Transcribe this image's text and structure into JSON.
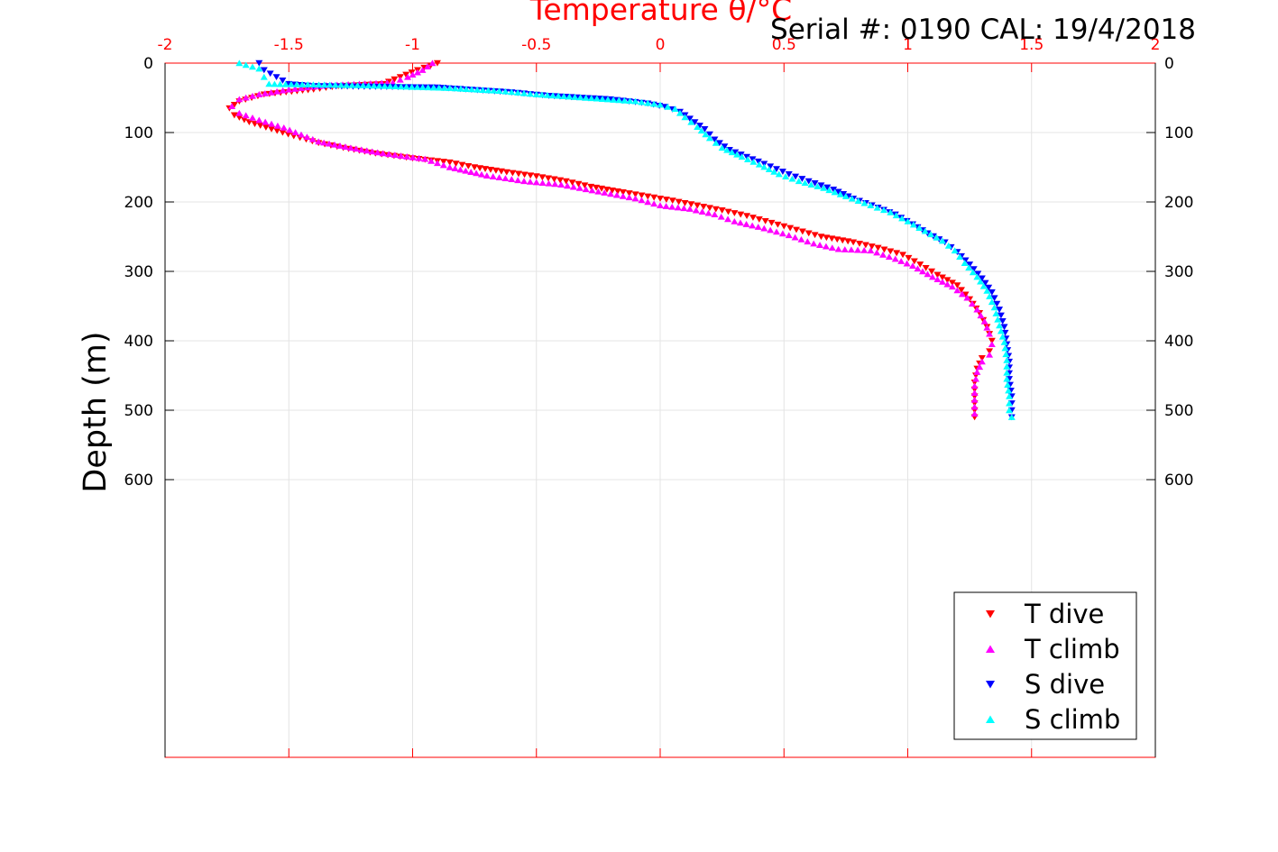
{
  "chart_data": {
    "type": "scatter",
    "title": "Temperature θ/°C",
    "subtitle": "Serial #: 0190  CAL: 19/4/2018",
    "xlabel": "Temperature θ/°C",
    "ylabel": "Depth (m)",
    "xlim": [
      -2,
      2
    ],
    "ylim": [
      0,
      1000
    ],
    "y_reversed": true,
    "x_axis_position": "top",
    "right_axis_ticks_mirrored": true,
    "grid": true,
    "legend_position": "bottom-right",
    "x_ticks": [
      {
        "value": -2,
        "label": "-2"
      },
      {
        "value": -1.5,
        "label": "-1.5"
      },
      {
        "value": -1,
        "label": "-1"
      },
      {
        "value": -0.5,
        "label": "-0.5"
      },
      {
        "value": 0,
        "label": "0"
      },
      {
        "value": 0.5,
        "label": "0.5"
      },
      {
        "value": 1,
        "label": "1"
      },
      {
        "value": 1.5,
        "label": "1.5"
      },
      {
        "value": 2,
        "label": "2"
      }
    ],
    "y_ticks": [
      {
        "value": 0,
        "label": "0"
      },
      {
        "value": 100,
        "label": "100"
      },
      {
        "value": 200,
        "label": "200"
      },
      {
        "value": 300,
        "label": "300"
      },
      {
        "value": 400,
        "label": "400"
      },
      {
        "value": 500,
        "label": "500"
      },
      {
        "value": 600,
        "label": "600"
      }
    ],
    "series": [
      {
        "name": "T dive",
        "color": "#ff0000",
        "marker": "triangle-down",
        "points": [
          [
            -0.9,
            0
          ],
          [
            -0.98,
            10
          ],
          [
            -1.05,
            20
          ],
          [
            -1.12,
            30
          ],
          [
            -1.3,
            33
          ],
          [
            -1.4,
            38
          ],
          [
            -1.6,
            45
          ],
          [
            -1.7,
            55
          ],
          [
            -1.74,
            65
          ],
          [
            -1.72,
            75
          ],
          [
            -1.66,
            85
          ],
          [
            -1.57,
            95
          ],
          [
            -1.48,
            105
          ],
          [
            -1.38,
            115
          ],
          [
            -1.28,
            122
          ],
          [
            -1.15,
            130
          ],
          [
            -1.0,
            137
          ],
          [
            -0.85,
            143
          ],
          [
            -0.75,
            150
          ],
          [
            -0.62,
            157
          ],
          [
            -0.5,
            163
          ],
          [
            -0.38,
            170
          ],
          [
            -0.28,
            178
          ],
          [
            -0.15,
            186
          ],
          [
            -0.05,
            192
          ],
          [
            0.05,
            198
          ],
          [
            0.15,
            205
          ],
          [
            0.25,
            212
          ],
          [
            0.35,
            220
          ],
          [
            0.45,
            230
          ],
          [
            0.55,
            240
          ],
          [
            0.65,
            250
          ],
          [
            0.78,
            258
          ],
          [
            0.88,
            266
          ],
          [
            0.98,
            276
          ],
          [
            1.05,
            290
          ],
          [
            1.12,
            305
          ],
          [
            1.2,
            320
          ],
          [
            1.25,
            340
          ],
          [
            1.29,
            360
          ],
          [
            1.32,
            380
          ],
          [
            1.34,
            400
          ],
          [
            1.33,
            415
          ],
          [
            1.3,
            425
          ],
          [
            1.28,
            440
          ],
          [
            1.27,
            460
          ],
          [
            1.27,
            480
          ],
          [
            1.27,
            500
          ],
          [
            1.27,
            510
          ]
        ]
      },
      {
        "name": "T climb",
        "color": "#ff00ff",
        "marker": "triangle-up",
        "points": [
          [
            -0.92,
            0
          ],
          [
            -0.96,
            10
          ],
          [
            -1.02,
            20
          ],
          [
            -1.08,
            28
          ],
          [
            -1.35,
            32
          ],
          [
            -1.5,
            38
          ],
          [
            -1.62,
            45
          ],
          [
            -1.7,
            52
          ],
          [
            -1.73,
            62
          ],
          [
            -1.7,
            72
          ],
          [
            -1.62,
            82
          ],
          [
            -1.52,
            93
          ],
          [
            -1.45,
            103
          ],
          [
            -1.38,
            113
          ],
          [
            -1.25,
            122
          ],
          [
            -1.12,
            130
          ],
          [
            -0.95,
            138
          ],
          [
            -0.85,
            150
          ],
          [
            -0.7,
            162
          ],
          [
            -0.55,
            170
          ],
          [
            -0.4,
            175
          ],
          [
            -0.25,
            185
          ],
          [
            -0.1,
            195
          ],
          [
            0.0,
            205
          ],
          [
            0.12,
            210
          ],
          [
            0.22,
            218
          ],
          [
            0.3,
            228
          ],
          [
            0.42,
            238
          ],
          [
            0.52,
            248
          ],
          [
            0.62,
            260
          ],
          [
            0.72,
            268
          ],
          [
            0.85,
            270
          ],
          [
            0.95,
            282
          ],
          [
            1.02,
            292
          ],
          [
            1.1,
            308
          ],
          [
            1.18,
            322
          ],
          [
            1.24,
            338
          ],
          [
            1.28,
            355
          ],
          [
            1.31,
            372
          ],
          [
            1.33,
            390
          ],
          [
            1.34,
            405
          ],
          [
            1.33,
            420
          ],
          [
            1.3,
            430
          ],
          [
            1.28,
            445
          ],
          [
            1.27,
            465
          ],
          [
            1.27,
            485
          ],
          [
            1.27,
            505
          ]
        ]
      },
      {
        "name": "S dive",
        "color": "#0000ff",
        "marker": "triangle-down",
        "points": [
          [
            -1.62,
            0
          ],
          [
            -1.6,
            10
          ],
          [
            -1.55,
            20
          ],
          [
            -1.5,
            30
          ],
          [
            -1.4,
            33
          ],
          [
            -0.9,
            35
          ],
          [
            -0.6,
            42
          ],
          [
            -0.45,
            47
          ],
          [
            -0.2,
            52
          ],
          [
            -0.05,
            58
          ],
          [
            0.02,
            63
          ],
          [
            0.08,
            70
          ],
          [
            0.12,
            80
          ],
          [
            0.18,
            95
          ],
          [
            0.22,
            110
          ],
          [
            0.28,
            125
          ],
          [
            0.35,
            135
          ],
          [
            0.42,
            145
          ],
          [
            0.52,
            160
          ],
          [
            0.6,
            170
          ],
          [
            0.7,
            182
          ],
          [
            0.78,
            195
          ],
          [
            0.88,
            208
          ],
          [
            0.95,
            218
          ],
          [
            1.02,
            232
          ],
          [
            1.08,
            245
          ],
          [
            1.15,
            258
          ],
          [
            1.2,
            272
          ],
          [
            1.25,
            290
          ],
          [
            1.3,
            310
          ],
          [
            1.34,
            330
          ],
          [
            1.37,
            355
          ],
          [
            1.39,
            380
          ],
          [
            1.4,
            405
          ],
          [
            1.41,
            430
          ],
          [
            1.41,
            455
          ],
          [
            1.42,
            480
          ],
          [
            1.42,
            500
          ],
          [
            1.42,
            510
          ]
        ]
      },
      {
        "name": "S climb",
        "color": "#00ffff",
        "marker": "triangle-up",
        "points": [
          [
            -1.7,
            0
          ],
          [
            -1.62,
            8
          ],
          [
            -1.6,
            20
          ],
          [
            -1.58,
            30
          ],
          [
            -1.2,
            32
          ],
          [
            -0.85,
            36
          ],
          [
            -0.65,
            40
          ],
          [
            -0.5,
            45
          ],
          [
            -0.3,
            50
          ],
          [
            -0.1,
            55
          ],
          [
            0.0,
            60
          ],
          [
            0.06,
            66
          ],
          [
            0.1,
            78
          ],
          [
            0.15,
            92
          ],
          [
            0.2,
            108
          ],
          [
            0.25,
            122
          ],
          [
            0.33,
            135
          ],
          [
            0.4,
            146
          ],
          [
            0.48,
            160
          ],
          [
            0.56,
            170
          ],
          [
            0.66,
            180
          ],
          [
            0.75,
            192
          ],
          [
            0.85,
            205
          ],
          [
            0.93,
            215
          ],
          [
            1.0,
            228
          ],
          [
            1.07,
            242
          ],
          [
            1.14,
            256
          ],
          [
            1.19,
            270
          ],
          [
            1.23,
            288
          ],
          [
            1.28,
            308
          ],
          [
            1.32,
            328
          ],
          [
            1.35,
            352
          ],
          [
            1.37,
            378
          ],
          [
            1.39,
            402
          ],
          [
            1.4,
            428
          ],
          [
            1.4,
            455
          ],
          [
            1.41,
            480
          ],
          [
            1.41,
            500
          ],
          [
            1.42,
            510
          ]
        ]
      }
    ]
  }
}
